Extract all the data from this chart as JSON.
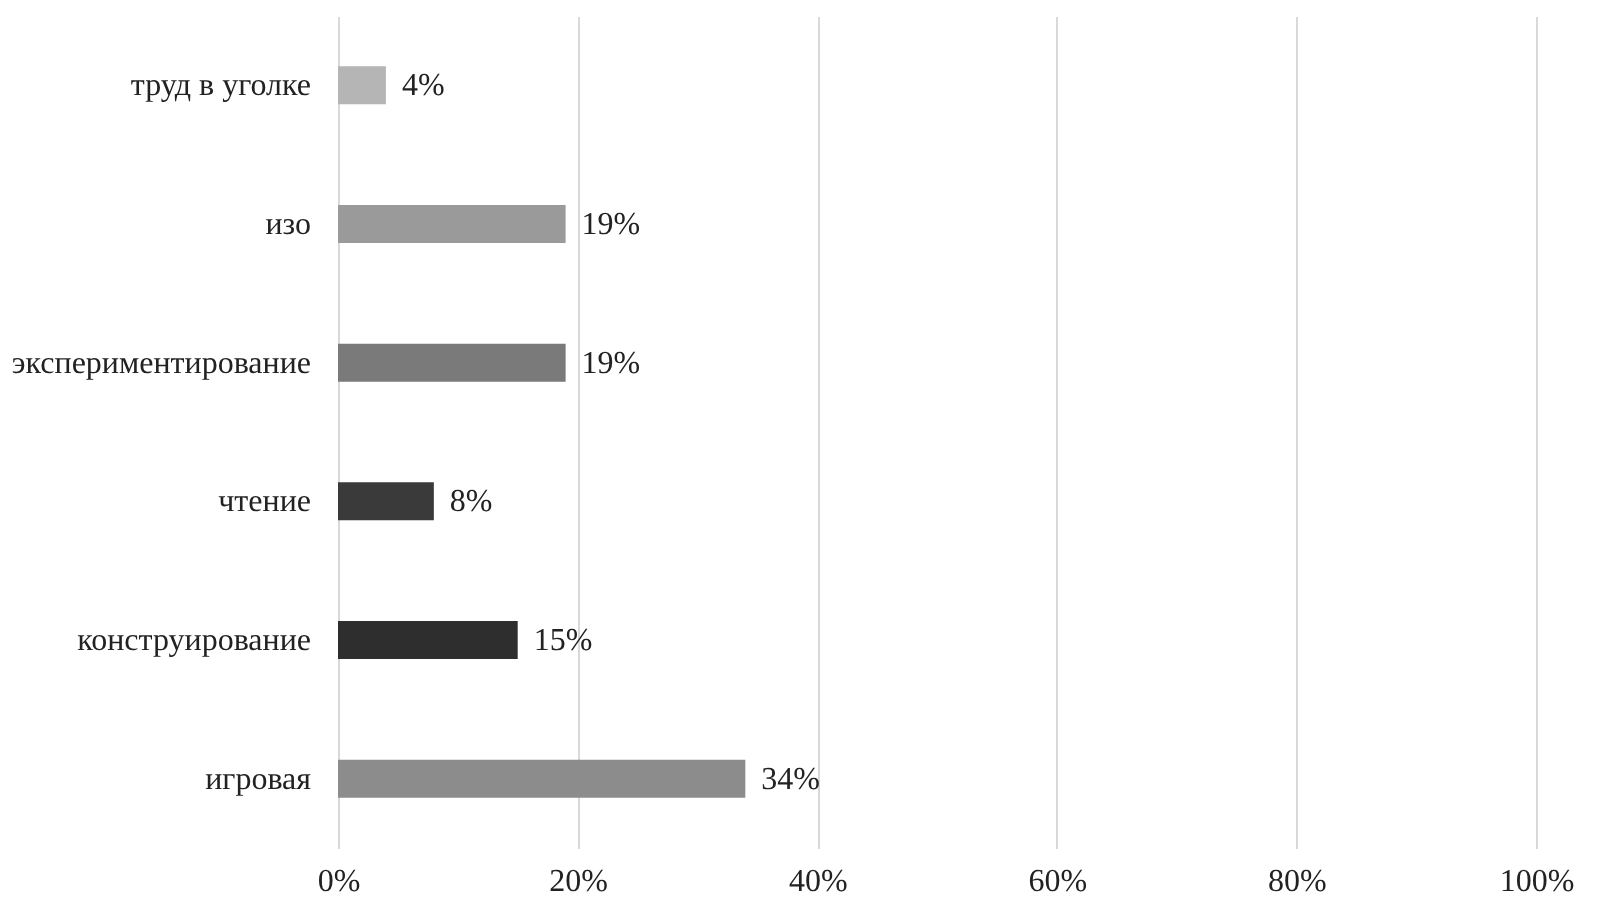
{
  "chart_data": {
    "type": "bar",
    "orientation": "horizontal",
    "categories": [
      "труд в уголке",
      "изо",
      "экспериментирование",
      "чтение",
      "конструирование",
      "игровая"
    ],
    "values": [
      4,
      19,
      19,
      8,
      15,
      34
    ],
    "colors": [
      "#b5b5b5",
      "#9a9a9a",
      "#7a7a7a",
      "#3a3a3a",
      "#2e2e2e",
      "#8c8c8c"
    ],
    "value_labels": [
      "4%",
      "19%",
      "19%",
      "8%",
      "15%",
      "34%"
    ],
    "xlim": [
      0,
      100
    ],
    "xticks": [
      {
        "value": 0,
        "label": "0%"
      },
      {
        "value": 20,
        "label": "20%"
      },
      {
        "value": 40,
        "label": "40%"
      },
      {
        "value": 60,
        "label": "60%"
      },
      {
        "value": 80,
        "label": "80%"
      },
      {
        "value": 100,
        "label": "100%"
      }
    ],
    "grid": "x"
  }
}
